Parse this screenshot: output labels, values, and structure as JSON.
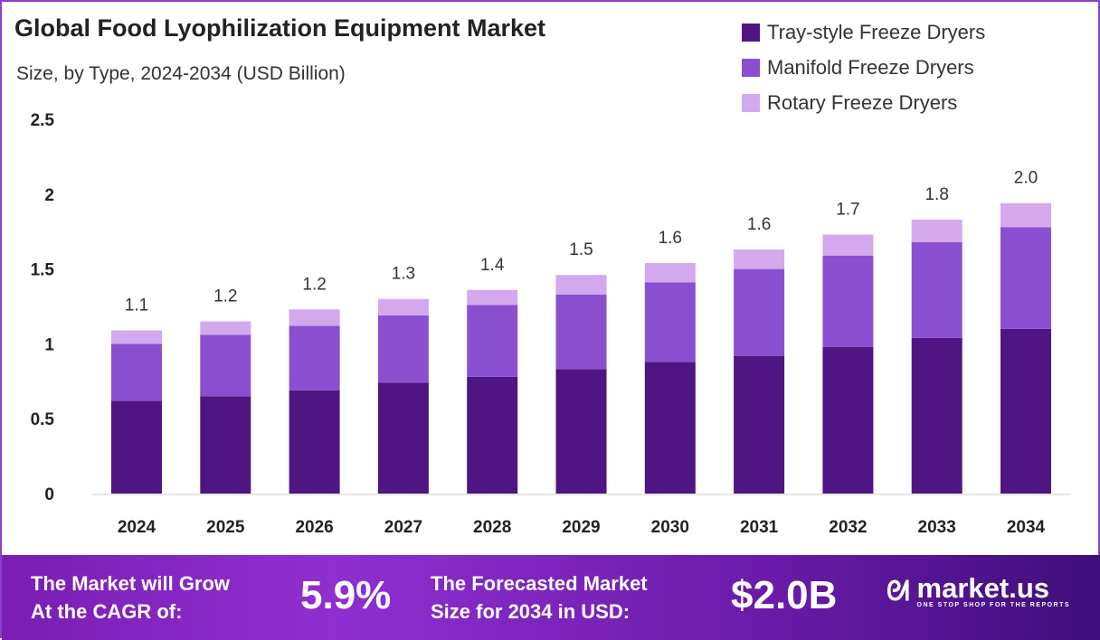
{
  "chart_data": {
    "type": "bar",
    "stacked": true,
    "title": "Global Food Lyophilization Equipment Market",
    "subtitle": "Size, by Type, 2024-2034 (USD Billion)",
    "categories": [
      "2024",
      "2025",
      "2026",
      "2027",
      "2028",
      "2029",
      "2030",
      "2031",
      "2032",
      "2033",
      "2034"
    ],
    "series": [
      {
        "name": "Tray-style Freeze Dryers",
        "color": "#4e1583",
        "values": [
          0.62,
          0.65,
          0.69,
          0.74,
          0.78,
          0.83,
          0.88,
          0.92,
          0.98,
          1.04,
          1.1
        ]
      },
      {
        "name": "Manifold Freeze Dryers",
        "color": "#8a4fcf",
        "values": [
          0.38,
          0.41,
          0.43,
          0.45,
          0.48,
          0.5,
          0.53,
          0.58,
          0.61,
          0.64,
          0.68
        ]
      },
      {
        "name": "Rotary Freeze Dryers",
        "color": "#d3a8ec",
        "values": [
          0.09,
          0.09,
          0.11,
          0.11,
          0.1,
          0.13,
          0.13,
          0.13,
          0.14,
          0.15,
          0.16
        ]
      }
    ],
    "totals_labels": [
      "1.1",
      "1.2",
      "1.2",
      "1.3",
      "1.4",
      "1.5",
      "1.6",
      "1.6",
      "1.7",
      "1.8",
      "2.0"
    ],
    "yticks": [
      "0",
      "0.5",
      "1",
      "1.5",
      "2",
      "2.5"
    ],
    "ylim": [
      0,
      2.5
    ],
    "grid": false,
    "legend": "top-right"
  },
  "footer": {
    "cagr_text_1": "The Market will Grow",
    "cagr_text_2": "At the CAGR of:",
    "cagr_value": "5.9%",
    "forecast_text_1": "The Forecasted Market",
    "forecast_text_2": "Size for 2034 in USD:",
    "forecast_value": "$2.0B",
    "logo_name": "market.us",
    "logo_tagline": "ONE STOP SHOP FOR THE REPORTS"
  }
}
